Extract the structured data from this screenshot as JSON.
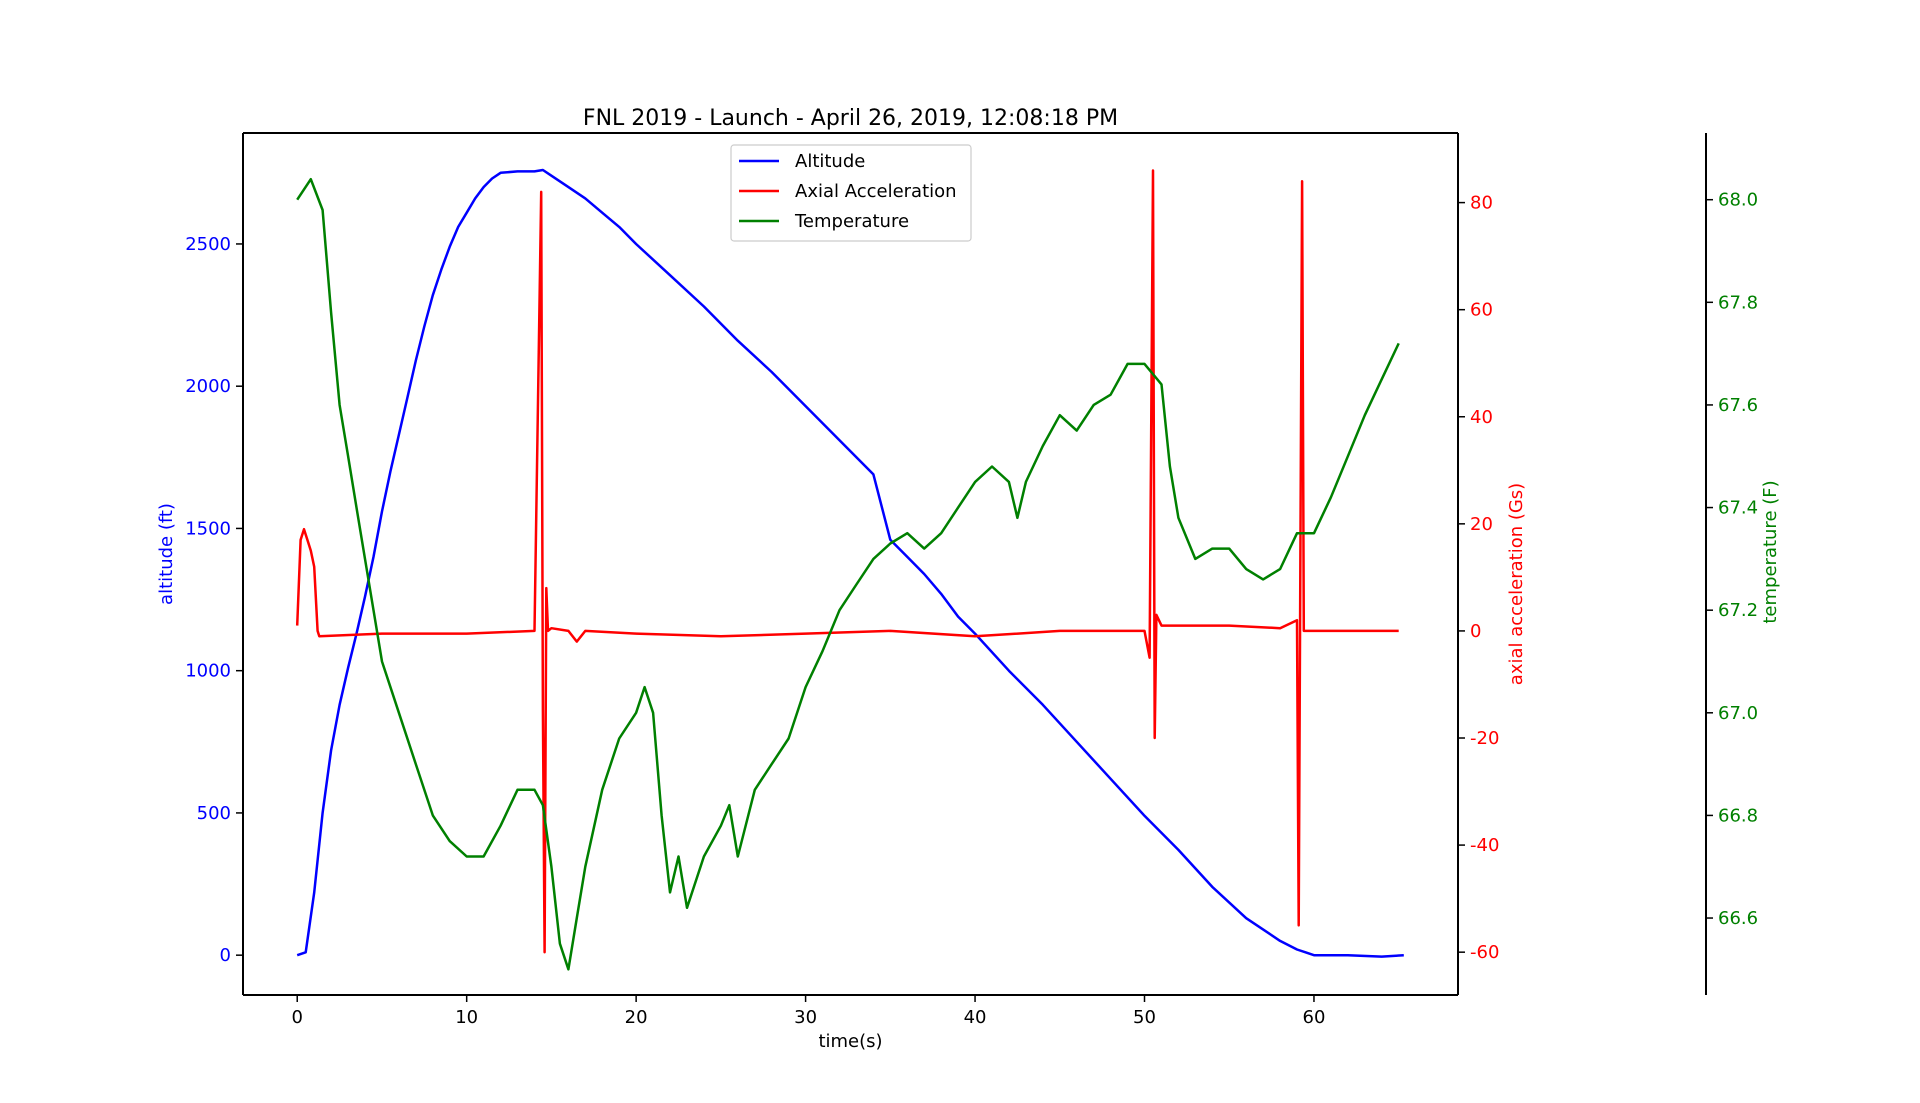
{
  "chart_data": {
    "type": "line",
    "title": "FNL 2019 - Launch - April 26, 2019, 12:08:18 PM",
    "xlabel": "time(s)",
    "xlim": [
      -3.2,
      68.5
    ],
    "xticks": [
      0,
      10,
      20,
      30,
      40,
      50,
      60
    ],
    "grid": false,
    "legend_position": "top-center",
    "legend": [
      "Altitude",
      "Axial Acceleration",
      "Temperature"
    ],
    "axes": {
      "altitude": {
        "label": "altitude (ft)",
        "side": "left",
        "color": "#0000ff",
        "ylim": [
          -140,
          2890
        ],
        "ticks": [
          0,
          500,
          1000,
          1500,
          2000,
          2500
        ]
      },
      "acceleration": {
        "label": "axial acceleration (Gs)",
        "side": "right",
        "color": "#ff0000",
        "ylim": [
          -68,
          93
        ],
        "ticks": [
          -60,
          -40,
          -20,
          0,
          20,
          40,
          60,
          80
        ]
      },
      "temperature": {
        "label": "temperature (F)",
        "side": "right-outer",
        "color": "#008000",
        "ylim": [
          66.45,
          68.13
        ],
        "ticks": [
          66.6,
          66.8,
          67.0,
          67.2,
          67.4,
          67.6,
          67.8,
          68.0
        ]
      }
    },
    "series": [
      {
        "name": "Altitude",
        "axis": "altitude",
        "color": "#0000ff",
        "points": [
          [
            0,
            0
          ],
          [
            0.5,
            10
          ],
          [
            1,
            220
          ],
          [
            1.5,
            500
          ],
          [
            2,
            720
          ],
          [
            2.5,
            880
          ],
          [
            3,
            1010
          ],
          [
            3.5,
            1130
          ],
          [
            4,
            1260
          ],
          [
            4.5,
            1400
          ],
          [
            5,
            1560
          ],
          [
            5.5,
            1700
          ],
          [
            6,
            1830
          ],
          [
            6.5,
            1960
          ],
          [
            7,
            2090
          ],
          [
            7.5,
            2210
          ],
          [
            8,
            2320
          ],
          [
            8.5,
            2410
          ],
          [
            9,
            2490
          ],
          [
            9.5,
            2560
          ],
          [
            10,
            2610
          ],
          [
            10.5,
            2660
          ],
          [
            11,
            2700
          ],
          [
            11.5,
            2730
          ],
          [
            12,
            2750
          ],
          [
            13,
            2755
          ],
          [
            14,
            2755
          ],
          [
            14.5,
            2760
          ],
          [
            15,
            2740
          ],
          [
            16,
            2700
          ],
          [
            17,
            2660
          ],
          [
            18,
            2610
          ],
          [
            19,
            2560
          ],
          [
            20,
            2500
          ],
          [
            22,
            2390
          ],
          [
            24,
            2280
          ],
          [
            26,
            2160
          ],
          [
            28,
            2050
          ],
          [
            30,
            1930
          ],
          [
            32,
            1810
          ],
          [
            34,
            1690
          ],
          [
            35,
            1460
          ],
          [
            36,
            1400
          ],
          [
            37,
            1340
          ],
          [
            38,
            1270
          ],
          [
            39,
            1190
          ],
          [
            40,
            1130
          ],
          [
            42,
            1000
          ],
          [
            44,
            880
          ],
          [
            46,
            750
          ],
          [
            48,
            620
          ],
          [
            50,
            490
          ],
          [
            52,
            370
          ],
          [
            54,
            240
          ],
          [
            56,
            130
          ],
          [
            58,
            50
          ],
          [
            59,
            20
          ],
          [
            59.5,
            10
          ],
          [
            60,
            0
          ],
          [
            62,
            0
          ],
          [
            64,
            -5
          ],
          [
            65.3,
            0
          ]
        ]
      },
      {
        "name": "Axial Acceleration",
        "axis": "acceleration",
        "color": "#ff0000",
        "points": [
          [
            0,
            1
          ],
          [
            0.2,
            17
          ],
          [
            0.4,
            19
          ],
          [
            0.6,
            17
          ],
          [
            0.8,
            15
          ],
          [
            1,
            12
          ],
          [
            1.2,
            0
          ],
          [
            1.3,
            -1
          ],
          [
            5,
            -0.5
          ],
          [
            10,
            -0.5
          ],
          [
            14,
            0
          ],
          [
            14.4,
            82
          ],
          [
            14.5,
            -15
          ],
          [
            14.6,
            -60
          ],
          [
            14.7,
            8
          ],
          [
            14.8,
            0
          ],
          [
            15,
            0.5
          ],
          [
            16,
            0
          ],
          [
            16.5,
            -2
          ],
          [
            17,
            0
          ],
          [
            20,
            -0.5
          ],
          [
            25,
            -1
          ],
          [
            30,
            -0.5
          ],
          [
            35,
            0
          ],
          [
            40,
            -1
          ],
          [
            45,
            0
          ],
          [
            50,
            0
          ],
          [
            50.3,
            -5
          ],
          [
            50.5,
            86
          ],
          [
            50.6,
            -20
          ],
          [
            50.7,
            3
          ],
          [
            51,
            1
          ],
          [
            55,
            1
          ],
          [
            58,
            0.5
          ],
          [
            59,
            2
          ],
          [
            59.1,
            -55
          ],
          [
            59.3,
            84
          ],
          [
            59.4,
            0
          ],
          [
            60,
            0
          ],
          [
            65,
            0
          ]
        ]
      },
      {
        "name": "Temperature",
        "axis": "temperature",
        "color": "#008000",
        "points": [
          [
            0,
            68.0
          ],
          [
            0.8,
            68.04
          ],
          [
            1.5,
            67.98
          ],
          [
            2,
            67.78
          ],
          [
            2.5,
            67.6
          ],
          [
            3,
            67.5
          ],
          [
            3.5,
            67.4
          ],
          [
            4,
            67.3
          ],
          [
            4.5,
            67.2
          ],
          [
            5,
            67.1
          ],
          [
            6,
            67.0
          ],
          [
            7,
            66.9
          ],
          [
            8,
            66.8
          ],
          [
            9,
            66.75
          ],
          [
            10,
            66.72
          ],
          [
            11,
            66.72
          ],
          [
            12,
            66.78
          ],
          [
            13,
            66.85
          ],
          [
            14,
            66.85
          ],
          [
            14.5,
            66.82
          ],
          [
            15,
            66.7
          ],
          [
            15.5,
            66.55
          ],
          [
            16,
            66.5
          ],
          [
            16.5,
            66.6
          ],
          [
            17,
            66.7
          ],
          [
            18,
            66.85
          ],
          [
            19,
            66.95
          ],
          [
            20,
            67.0
          ],
          [
            20.5,
            67.05
          ],
          [
            21,
            67.0
          ],
          [
            21.5,
            66.8
          ],
          [
            22,
            66.65
          ],
          [
            22.5,
            66.72
          ],
          [
            23,
            66.62
          ],
          [
            24,
            66.72
          ],
          [
            25,
            66.78
          ],
          [
            25.5,
            66.82
          ],
          [
            26,
            66.72
          ],
          [
            27,
            66.85
          ],
          [
            28,
            66.9
          ],
          [
            29,
            66.95
          ],
          [
            30,
            67.05
          ],
          [
            31,
            67.12
          ],
          [
            32,
            67.2
          ],
          [
            33,
            67.25
          ],
          [
            34,
            67.3
          ],
          [
            35,
            67.33
          ],
          [
            36,
            67.35
          ],
          [
            37,
            67.32
          ],
          [
            38,
            67.35
          ],
          [
            39,
            67.4
          ],
          [
            40,
            67.45
          ],
          [
            41,
            67.48
          ],
          [
            42,
            67.45
          ],
          [
            42.5,
            67.38
          ],
          [
            43,
            67.45
          ],
          [
            44,
            67.52
          ],
          [
            45,
            67.58
          ],
          [
            46,
            67.55
          ],
          [
            47,
            67.6
          ],
          [
            48,
            67.62
          ],
          [
            49,
            67.68
          ],
          [
            50,
            67.68
          ],
          [
            51,
            67.64
          ],
          [
            51.5,
            67.48
          ],
          [
            52,
            67.38
          ],
          [
            53,
            67.3
          ],
          [
            54,
            67.32
          ],
          [
            55,
            67.32
          ],
          [
            56,
            67.28
          ],
          [
            57,
            67.26
          ],
          [
            58,
            67.28
          ],
          [
            59,
            67.35
          ],
          [
            60,
            67.35
          ],
          [
            61,
            67.42
          ],
          [
            62,
            67.5
          ],
          [
            63,
            67.58
          ],
          [
            64,
            67.65
          ],
          [
            65,
            67.72
          ]
        ]
      }
    ]
  }
}
